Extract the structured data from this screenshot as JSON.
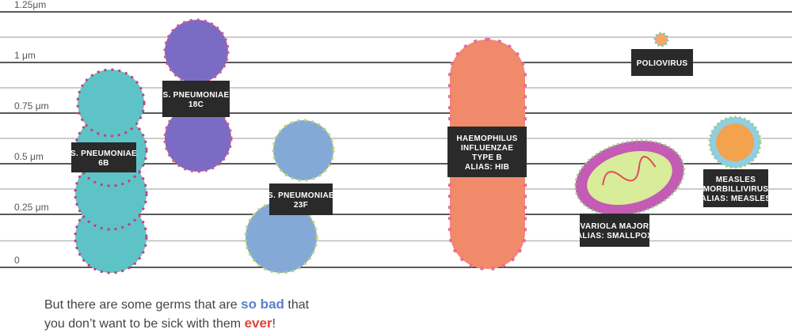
{
  "scale": {
    "labels": [
      "1.25μm",
      "1 μm",
      "0.75 μm",
      "0.5 μm",
      "0.25 μm",
      "0"
    ]
  },
  "germs": [
    {
      "label": [
        "S. PNEUMONIAE",
        "6B"
      ]
    },
    {
      "label": [
        "S. PNEUMONIAE",
        "18C"
      ]
    },
    {
      "label": [
        "S. PNEUMONIAE",
        "23F"
      ]
    },
    {
      "label": [
        "HAEMOPHILUS",
        "INFLUENZAE",
        "TYPE B",
        "ALIAS: HIB"
      ]
    },
    {
      "label": [
        "POLIOVIRUS"
      ]
    },
    {
      "label": [
        "VARIOLA MAJOR",
        "ALIAS: SMALLPOX"
      ]
    },
    {
      "label": [
        "MEASLES",
        "MORBILLIVIRUS",
        "ALIAS: MEASLES"
      ]
    }
  ],
  "caption": {
    "line1": [
      "But there are some germs that are ",
      "so bad",
      " that"
    ],
    "line2": [
      "you don’t want to be sick with them ",
      "ever",
      "!"
    ]
  }
}
